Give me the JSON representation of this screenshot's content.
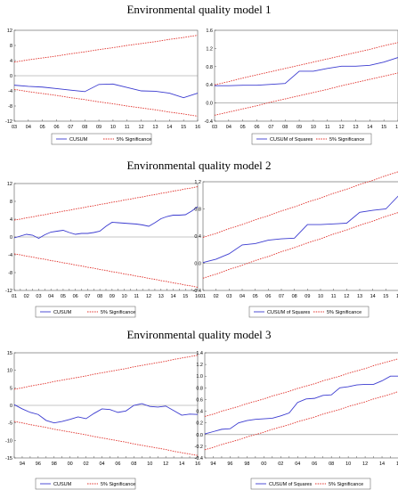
{
  "titles": [
    "Environmental quality model 1",
    "Environmental quality model 2",
    "Environmental quality model 3"
  ],
  "colors": {
    "cusum": "#3b3bd0",
    "significance": "#e0302a",
    "zero_line": "#8a8a8a",
    "frame": "#555555"
  },
  "chart_data": [
    {
      "type": "line",
      "panel": "m1-cusum",
      "x": [
        "03",
        "04",
        "05",
        "06",
        "07",
        "08",
        "09",
        "10",
        "11",
        "12",
        "13",
        "14",
        "15",
        "16"
      ],
      "ylim": [
        -12,
        12
      ],
      "yticks": [
        -12,
        -8,
        -4,
        0,
        4,
        8,
        12
      ],
      "series": [
        {
          "name": "CUSUM",
          "style": "solid",
          "values": [
            -2.5,
            -2.8,
            -3.0,
            -3.4,
            -3.8,
            -4.2,
            -2.3,
            -2.2,
            -3.1,
            -4.0,
            -4.1,
            -4.6,
            -5.8,
            -4.6
          ]
        },
        {
          "name": "5% Significance",
          "style": "dotted",
          "values": [
            3.6,
            4.2,
            4.7,
            5.2,
            5.8,
            6.3,
            6.9,
            7.4,
            8.0,
            8.5,
            9.0,
            9.6,
            10.1,
            10.7
          ]
        },
        {
          "style": "dotted",
          "values": [
            -3.6,
            -4.2,
            -4.7,
            -5.2,
            -5.8,
            -6.3,
            -6.9,
            -7.4,
            -8.0,
            -8.5,
            -9.0,
            -9.6,
            -10.1,
            -10.7
          ]
        }
      ]
    },
    {
      "type": "line",
      "panel": "m1-cusumsq",
      "x": [
        "03",
        "04",
        "05",
        "06",
        "07",
        "08",
        "09",
        "10",
        "11",
        "12",
        "13",
        "14",
        "15",
        "16"
      ],
      "ylim": [
        -0.4,
        1.6
      ],
      "yticks": [
        -0.4,
        0.0,
        0.4,
        0.8,
        1.2,
        1.6
      ],
      "series": [
        {
          "name": "CUSUM of Squares",
          "style": "solid",
          "values": [
            0.38,
            0.38,
            0.39,
            0.39,
            0.41,
            0.43,
            0.7,
            0.7,
            0.76,
            0.81,
            0.81,
            0.83,
            0.9,
            1.0
          ]
        },
        {
          "name": "5% Significance",
          "style": "dotted",
          "values": [
            0.4,
            0.47,
            0.55,
            0.62,
            0.69,
            0.76,
            0.83,
            0.9,
            0.97,
            1.04,
            1.11,
            1.18,
            1.26,
            1.33
          ]
        },
        {
          "style": "dotted",
          "values": [
            -0.27,
            -0.2,
            -0.13,
            -0.06,
            0.02,
            0.09,
            0.16,
            0.23,
            0.3,
            0.38,
            0.45,
            0.52,
            0.59,
            0.66
          ]
        }
      ]
    },
    {
      "type": "line",
      "panel": "m2-cusum",
      "x": [
        "01",
        "",
        "02",
        "",
        "03",
        "",
        "04",
        "",
        "05",
        "",
        "06",
        "",
        "07",
        "",
        "08",
        "",
        "09",
        "",
        "10",
        "",
        "11",
        "",
        "12",
        "",
        "13",
        "",
        "14",
        "",
        "15",
        "",
        "16"
      ],
      "x_tick_labels": [
        "01",
        "02",
        "03",
        "04",
        "05",
        "06",
        "07",
        "08",
        "09",
        "10",
        "11",
        "12",
        "13",
        "14",
        "15",
        "16"
      ],
      "ylim": [
        -12,
        12
      ],
      "yticks": [
        -12,
        -8,
        -4,
        0,
        4,
        8,
        12
      ],
      "series": [
        {
          "name": "CUSUM",
          "style": "solid",
          "values": [
            -0.2,
            0.2,
            0.6,
            0.4,
            -0.3,
            0.5,
            1.1,
            1.3,
            1.5,
            1.0,
            0.6,
            0.8,
            0.8,
            1.0,
            1.3,
            2.4,
            3.3,
            3.2,
            3.1,
            3.0,
            2.9,
            2.7,
            2.4,
            3.2,
            4.1,
            4.6,
            4.9,
            4.9,
            5.0,
            5.8,
            6.8
          ]
        },
        {
          "name": "5% Significance",
          "style": "dotted",
          "values": [
            3.8,
            4.0,
            4.3,
            4.5,
            4.8,
            5.0,
            5.3,
            5.5,
            5.8,
            6.0,
            6.3,
            6.5,
            6.8,
            7.0,
            7.3,
            7.5,
            7.8,
            8.0,
            8.3,
            8.5,
            8.8,
            9.0,
            9.3,
            9.5,
            9.8,
            10.0,
            10.3,
            10.5,
            10.8,
            11.0,
            11.3
          ]
        },
        {
          "style": "dotted",
          "values": [
            -3.8,
            -4.0,
            -4.3,
            -4.5,
            -4.8,
            -5.0,
            -5.3,
            -5.5,
            -5.8,
            -6.0,
            -6.3,
            -6.5,
            -6.8,
            -7.0,
            -7.3,
            -7.5,
            -7.8,
            -8.0,
            -8.3,
            -8.5,
            -8.8,
            -9.0,
            -9.3,
            -9.5,
            -9.8,
            -10.0,
            -10.3,
            -10.5,
            -10.8,
            -11.0,
            -11.3
          ]
        }
      ]
    },
    {
      "type": "line",
      "panel": "m2-cusumsq",
      "x": [
        "01",
        "02",
        "03",
        "04",
        "05",
        "06",
        "07",
        "08",
        "09",
        "10",
        "11",
        "12",
        "13",
        "14",
        "15",
        "16"
      ],
      "ylim": [
        -0.4,
        1.2
      ],
      "yticks": [
        -0.4,
        0.0,
        0.4,
        0.8,
        1.2
      ],
      "series": [
        {
          "name": "CUSUM of Squares",
          "style": "solid",
          "values": [
            0.01,
            0.06,
            0.14,
            0.27,
            0.29,
            0.34,
            0.36,
            0.37,
            0.57,
            0.57,
            0.58,
            0.59,
            0.75,
            0.78,
            0.8,
            1.0
          ]
        },
        {
          "name": "5% Significance",
          "style": "dotted",
          "values": [
            0.38,
            0.44,
            0.51,
            0.57,
            0.64,
            0.7,
            0.77,
            0.83,
            0.9,
            0.96,
            1.03,
            1.09,
            1.16,
            1.22,
            1.29,
            1.35
          ]
        },
        {
          "style": "dotted",
          "values": [
            -0.22,
            -0.16,
            -0.09,
            -0.03,
            0.04,
            0.1,
            0.17,
            0.23,
            0.3,
            0.36,
            0.43,
            0.49,
            0.56,
            0.62,
            0.69,
            0.75
          ]
        }
      ]
    },
    {
      "type": "line",
      "panel": "m3-cusum",
      "x": [
        "93",
        "94",
        "95",
        "96",
        "97",
        "98",
        "99",
        "00",
        "01",
        "02",
        "03",
        "04",
        "05",
        "06",
        "07",
        "08",
        "09",
        "10",
        "11",
        "12",
        "13",
        "14",
        "15",
        "16"
      ],
      "x_tick_labels": [
        "94",
        "96",
        "98",
        "00",
        "02",
        "04",
        "06",
        "08",
        "10",
        "12",
        "14",
        "16"
      ],
      "ylim": [
        -15,
        15
      ],
      "yticks": [
        -15,
        -10,
        -5,
        0,
        5,
        10,
        15
      ],
      "series": [
        {
          "name": "CUSUM",
          "style": "solid",
          "values": [
            0.2,
            -1.0,
            -2.0,
            -2.6,
            -4.3,
            -5.0,
            -4.6,
            -4.0,
            -3.3,
            -3.8,
            -2.3,
            -1.0,
            -1.2,
            -2.0,
            -1.6,
            0.0,
            0.5,
            -0.3,
            -0.5,
            -0.2,
            -1.5,
            -2.8,
            -2.5,
            -2.6
          ]
        },
        {
          "name": "5% Significance",
          "style": "dotted",
          "values": [
            4.6,
            5.0,
            5.5,
            5.9,
            6.3,
            6.8,
            7.2,
            7.6,
            8.0,
            8.4,
            8.9,
            9.3,
            9.7,
            10.1,
            10.5,
            11.0,
            11.4,
            11.8,
            12.2,
            12.6,
            13.1,
            13.5,
            13.9,
            14.3
          ]
        },
        {
          "style": "dotted",
          "values": [
            -4.6,
            -5.0,
            -5.5,
            -5.9,
            -6.3,
            -6.8,
            -7.2,
            -7.6,
            -8.0,
            -8.4,
            -8.9,
            -9.3,
            -9.7,
            -10.1,
            -10.5,
            -11.0,
            -11.4,
            -11.8,
            -12.2,
            -12.6,
            -13.1,
            -13.5,
            -13.9,
            -14.3
          ]
        }
      ]
    },
    {
      "type": "line",
      "panel": "m3-cusumsq",
      "x": [
        "93",
        "94",
        "95",
        "96",
        "97",
        "98",
        "99",
        "00",
        "01",
        "02",
        "03",
        "04",
        "05",
        "06",
        "07",
        "08",
        "09",
        "10",
        "11",
        "12",
        "13",
        "14",
        "15",
        "16"
      ],
      "x_tick_labels": [
        "94",
        "96",
        "98",
        "00",
        "02",
        "04",
        "06",
        "08",
        "10",
        "12",
        "14",
        "16"
      ],
      "ylim": [
        -0.4,
        1.4
      ],
      "yticks": [
        -0.4,
        -0.2,
        0.0,
        0.2,
        0.4,
        0.6,
        0.8,
        1.0,
        1.2,
        1.4
      ],
      "series": [
        {
          "name": "CUSUM of Squares",
          "style": "solid",
          "values": [
            0.01,
            0.05,
            0.09,
            0.1,
            0.2,
            0.24,
            0.26,
            0.27,
            0.28,
            0.32,
            0.37,
            0.55,
            0.61,
            0.62,
            0.67,
            0.68,
            0.8,
            0.82,
            0.85,
            0.86,
            0.86,
            0.92,
            1.0,
            1.0
          ]
        },
        {
          "name": "5% Significance",
          "style": "dotted",
          "values": [
            0.31,
            0.35,
            0.4,
            0.44,
            0.48,
            0.53,
            0.57,
            0.61,
            0.66,
            0.7,
            0.74,
            0.79,
            0.83,
            0.87,
            0.92,
            0.96,
            1.0,
            1.05,
            1.09,
            1.13,
            1.18,
            1.22,
            1.26,
            1.3
          ]
        },
        {
          "style": "dotted",
          "values": [
            -0.26,
            -0.22,
            -0.17,
            -0.13,
            -0.09,
            -0.04,
            0.0,
            0.04,
            0.09,
            0.13,
            0.17,
            0.22,
            0.26,
            0.3,
            0.35,
            0.39,
            0.43,
            0.48,
            0.52,
            0.56,
            0.61,
            0.65,
            0.69,
            0.74
          ]
        }
      ]
    }
  ]
}
